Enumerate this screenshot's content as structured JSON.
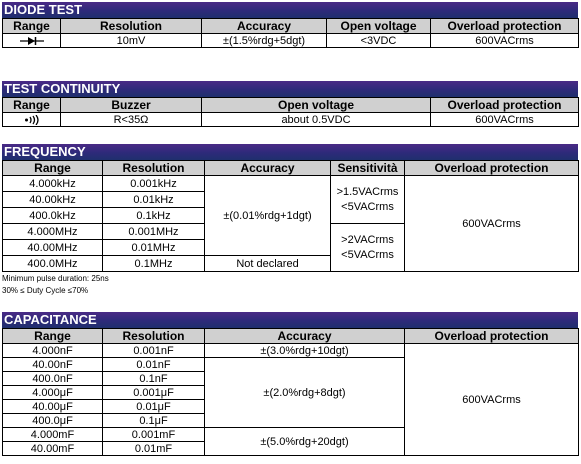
{
  "diode": {
    "title": "DIODE TEST",
    "headers": [
      "Range",
      "Resolution",
      "Accuracy",
      "Open voltage",
      "Overload protection"
    ],
    "row": {
      "resolution": "10mV",
      "accuracy": "±(1.5%rdg+5dgt)",
      "open_voltage": "<3VDC",
      "overload": "600VACrms"
    }
  },
  "continuity": {
    "title": "TEST CONTINUITY",
    "headers": [
      "Range",
      "Buzzer",
      "Open voltage",
      "Overload protection"
    ],
    "row": {
      "buzzer": "R<35Ω",
      "open_voltage": "about 0.5VDC",
      "overload": "600VACrms"
    }
  },
  "frequency": {
    "title": "FREQUENCY",
    "headers": [
      "Range",
      "Resolution",
      "Accuracy",
      "Sensitività",
      "Overload protection"
    ],
    "rows": [
      {
        "range": "4.000kHz",
        "resolution": "0.001kHz"
      },
      {
        "range": "40.00kHz",
        "resolution": "0.01kHz"
      },
      {
        "range": "400.0kHz",
        "resolution": "0.1kHz"
      },
      {
        "range": "4.000MHz",
        "resolution": "0.001MHz"
      },
      {
        "range": "40.00MHz",
        "resolution": "0.01MHz"
      },
      {
        "range": "400.0MHz",
        "resolution": "0.1MHz"
      }
    ],
    "accuracy": "±(0.01%rdg+1dgt)",
    "accuracy_last": "Not declared",
    "sens_1a": ">1.5VACrms",
    "sens_1b": "<5VACrms",
    "sens_2a": ">2VACrms",
    "sens_2b": "<5VACrms",
    "overload": "600VACrms",
    "note_1": "Minimum pulse duration: 25ns",
    "note_2": "30% ≤ Duty Cycle ≤70%"
  },
  "capacitance": {
    "title": "CAPACITANCE",
    "headers": [
      "Range",
      "Resolution",
      "Accuracy",
      "Overload protection"
    ],
    "rows": [
      {
        "range": "4.000nF",
        "resolution": "0.001nF"
      },
      {
        "range": "40.00nF",
        "resolution": "0.01nF"
      },
      {
        "range": "400.0nF",
        "resolution": "0.1nF"
      },
      {
        "range": "4.000μF",
        "resolution": "0.001μF"
      },
      {
        "range": "40.00μF",
        "resolution": "0.01μF"
      },
      {
        "range": "400.0μF",
        "resolution": "0.1μF"
      },
      {
        "range": "4.000mF",
        "resolution": "0.001mF"
      },
      {
        "range": "40.00mF",
        "resolution": "0.01mF"
      }
    ],
    "accuracy_1": "±(3.0%rdg+10dgt)",
    "accuracy_2": "±(2.0%rdg+8dgt)",
    "accuracy_3": "±(5.0%rdg+20dgt)",
    "overload": "600VACrms"
  },
  "icons": {
    "diode": "diode-symbol-icon",
    "buzzer": "buzzer-sound-icon"
  }
}
